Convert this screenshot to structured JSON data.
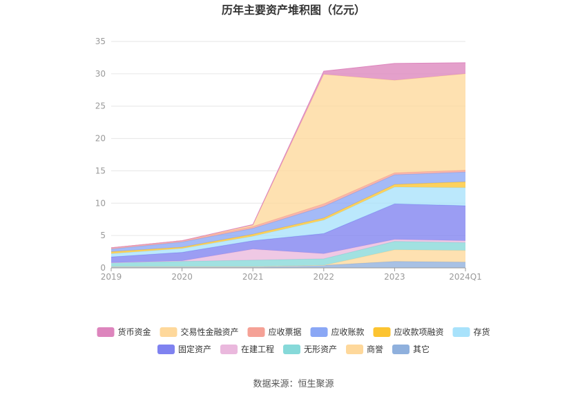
{
  "chart_data": {
    "type": "area",
    "stacked": true,
    "title": "历年主要资产堆积图（亿元）",
    "x": [
      "2019",
      "2020",
      "2021",
      "2022",
      "2023",
      "2024Q1"
    ],
    "ylim": [
      0,
      35
    ],
    "yticks": [
      0,
      5,
      10,
      15,
      20,
      25,
      30,
      35
    ],
    "grid": true,
    "legend_position": "bottom",
    "series": [
      {
        "name": "其它",
        "color": "#8fb0dd",
        "values": [
          0.2,
          0.2,
          0.2,
          0.4,
          1.0,
          0.9
        ]
      },
      {
        "name": "商誉",
        "color": "#fed89b",
        "values": [
          0,
          0,
          0,
          0,
          1.8,
          1.8
        ]
      },
      {
        "name": "无形资产",
        "color": "#86d9d9",
        "values": [
          0.6,
          0.8,
          1.0,
          1.0,
          1.3,
          1.2
        ]
      },
      {
        "name": "在建工程",
        "color": "#eab8dd",
        "values": [
          0,
          0.1,
          1.7,
          0.8,
          0.3,
          0.3
        ]
      },
      {
        "name": "固定资产",
        "color": "#7f82f0",
        "values": [
          0.9,
          1.3,
          1.3,
          3.1,
          5.5,
          5.4
        ]
      },
      {
        "name": "存货",
        "color": "#a8e2fb",
        "values": [
          0.5,
          0.6,
          0.7,
          2.1,
          2.6,
          2.8
        ]
      },
      {
        "name": "应收款项融资",
        "color": "#fcc431",
        "values": [
          0.3,
          0.2,
          0.3,
          0.3,
          0.4,
          0.9
        ]
      },
      {
        "name": "应收账款",
        "color": "#8aa7f5",
        "values": [
          0.4,
          0.8,
          0.9,
          1.8,
          1.5,
          1.5
        ]
      },
      {
        "name": "应收票据",
        "color": "#f5a196",
        "values": [
          0.2,
          0.2,
          0.3,
          0.4,
          0.3,
          0.3
        ]
      },
      {
        "name": "交易性金融资产",
        "color": "#fed89b",
        "values": [
          0,
          0,
          0.2,
          20.0,
          14.3,
          14.9
        ]
      },
      {
        "name": "货币资金",
        "color": "#dd85bd",
        "values": [
          0,
          0,
          0.1,
          0.5,
          2.6,
          1.7
        ]
      }
    ],
    "legend_order": [
      "货币资金",
      "交易性金融资产",
      "应收票据",
      "应收账款",
      "应收款项融资",
      "存货",
      "固定资产",
      "在建工程",
      "无形资产",
      "商誉",
      "其它"
    ]
  },
  "source_text": "数据来源：恒生聚源"
}
